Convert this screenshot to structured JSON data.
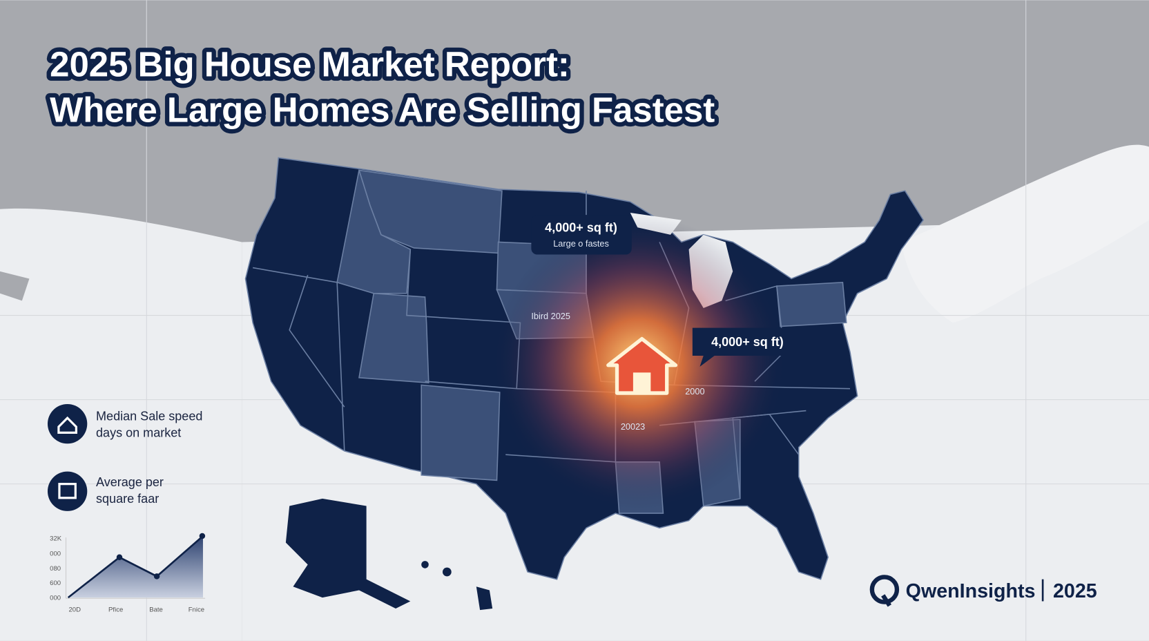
{
  "header": {
    "title_line1": "2025 Big House Market Report:",
    "title_line2": "Where Large Homes Are Selling Fastest"
  },
  "map": {
    "callouts": [
      {
        "label": "4,000+ sq ft)",
        "sublabel": "Large o fastes"
      },
      {
        "label": "4,000+ sq ft)"
      }
    ],
    "labels": [
      "Ibird 2025",
      "2000",
      "20023"
    ]
  },
  "legend": {
    "items": [
      {
        "line1": "Median Sale speed",
        "line2": "days on market"
      },
      {
        "line1": "Average per",
        "line2": "square faar"
      }
    ]
  },
  "mini_chart": {
    "y_labels": [
      "32K",
      "000",
      "080",
      "600",
      "000"
    ],
    "x_labels": [
      "20D",
      "Pfice",
      "Bate",
      "Fnice"
    ]
  },
  "brand": {
    "name": "QwenInsights",
    "year": "2025"
  }
}
